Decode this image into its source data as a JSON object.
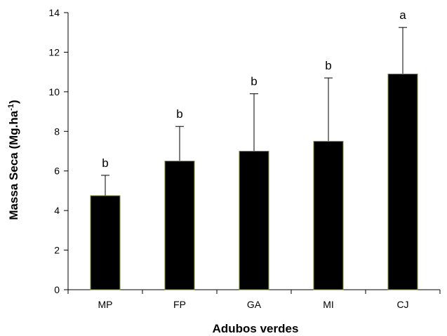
{
  "chart_data": {
    "type": "bar",
    "title": "",
    "categories": [
      "MP",
      "FP",
      "GA",
      "MI",
      "CJ"
    ],
    "values": [
      4.75,
      6.5,
      7.0,
      7.5,
      10.9
    ],
    "error_upper": [
      5.78,
      8.25,
      9.9,
      10.7,
      13.25
    ],
    "annotations": [
      "b",
      "b",
      "b",
      "b",
      "a"
    ],
    "xlabel": "Adubos verdes",
    "ylabel_main": "Massa Seca  (Mg.ha",
    "ylabel_sup": "-1",
    "ylabel_end": ")",
    "ylim": [
      0,
      14
    ],
    "yticks": [
      "0",
      "2",
      "4",
      "6",
      "8",
      "10",
      "12",
      "14"
    ],
    "grid": false,
    "legend": "none",
    "bar_color": "#000000",
    "bar_edge_color": "#7a8f3a"
  }
}
